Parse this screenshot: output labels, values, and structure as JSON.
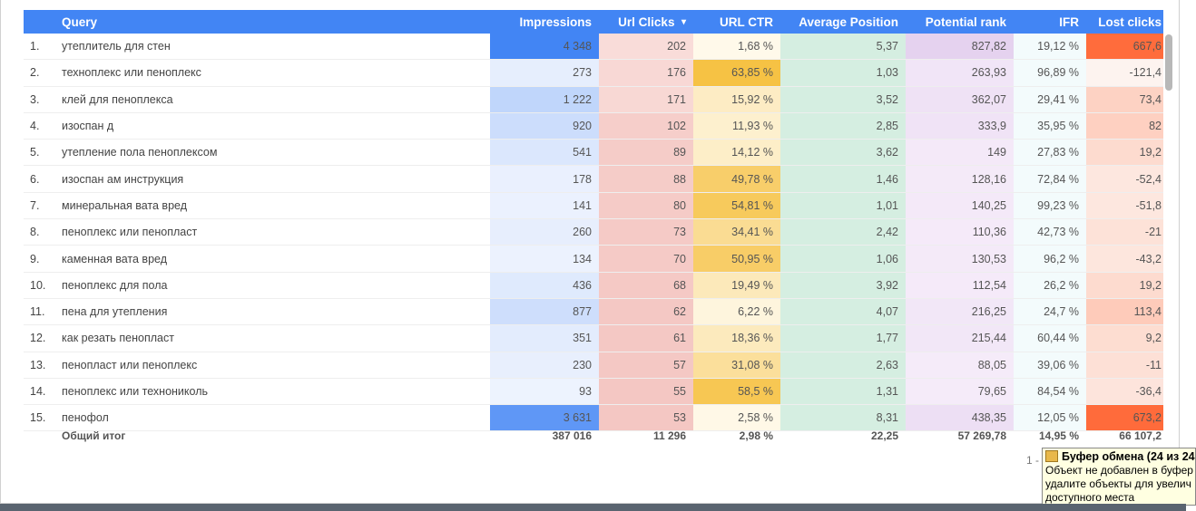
{
  "headers": {
    "query": "Query",
    "impressions": "Impressions",
    "url_clicks": "Url Clicks",
    "sort_icon": "▾",
    "url_ctr": "URL CTR",
    "avg_position": "Average Position",
    "potential_rank": "Potential rank",
    "ifr": "IFR",
    "lost_clicks": "Lost clicks"
  },
  "colors": {
    "header": "#4285f4",
    "impressions": [
      "#f1f5fe",
      "#4285f4"
    ],
    "url_clicks": [
      "#f9dcd9",
      "#f4c7c3"
    ],
    "url_ctr": [
      "#fffaee",
      "#f6c244"
    ],
    "avg_position": [
      "#d5eee1",
      "#d0ebdd"
    ],
    "potential_rank": [
      "#f7eefa",
      "#e5d2ef"
    ],
    "ifr": [
      "#f3fbfc",
      "#eef7fa"
    ],
    "lost_clicks": [
      "#fdf3ef",
      "#ff6a3a"
    ]
  },
  "rows": [
    {
      "n": "1.",
      "query": "утеплитель для стен",
      "impressions": "4 348",
      "imp": 4348,
      "url_clicks": "202",
      "clk": 202,
      "url_ctr": "1,68 %",
      "ctr": 1.68,
      "avg_position": "5,37",
      "potential_rank": "827,82",
      "pr": 827.82,
      "ifr": "19,12 %",
      "lost_clicks": "667,6",
      "lost": 667.6
    },
    {
      "n": "2.",
      "query": "техноплекс или пеноплекс",
      "impressions": "273",
      "imp": 273,
      "url_clicks": "176",
      "clk": 176,
      "url_ctr": "63,85 %",
      "ctr": 63.85,
      "avg_position": "1,03",
      "potential_rank": "263,93",
      "pr": 263.93,
      "ifr": "96,89 %",
      "lost_clicks": "-121,4",
      "lost": -121.4
    },
    {
      "n": "3.",
      "query": "клей для пеноплекса",
      "impressions": "1 222",
      "imp": 1222,
      "url_clicks": "171",
      "clk": 171,
      "url_ctr": "15,92 %",
      "ctr": 15.92,
      "avg_position": "3,52",
      "potential_rank": "362,07",
      "pr": 362.07,
      "ifr": "29,41 %",
      "lost_clicks": "73,4",
      "lost": 73.4
    },
    {
      "n": "4.",
      "query": "изоспан д",
      "impressions": "920",
      "imp": 920,
      "url_clicks": "102",
      "clk": 102,
      "url_ctr": "11,93 %",
      "ctr": 11.93,
      "avg_position": "2,85",
      "potential_rank": "333,9",
      "pr": 333.9,
      "ifr": "35,95 %",
      "lost_clicks": "82",
      "lost": 82
    },
    {
      "n": "5.",
      "query": "утепление пола пеноплексом",
      "impressions": "541",
      "imp": 541,
      "url_clicks": "89",
      "clk": 89,
      "url_ctr": "14,12 %",
      "ctr": 14.12,
      "avg_position": "3,62",
      "potential_rank": "149",
      "pr": 149,
      "ifr": "27,83 %",
      "lost_clicks": "19,2",
      "lost": 19.2
    },
    {
      "n": "6.",
      "query": "изоспан ам инструкция",
      "impressions": "178",
      "imp": 178,
      "url_clicks": "88",
      "clk": 88,
      "url_ctr": "49,78 %",
      "ctr": 49.78,
      "avg_position": "1,46",
      "potential_rank": "128,16",
      "pr": 128.16,
      "ifr": "72,84 %",
      "lost_clicks": "-52,4",
      "lost": -52.4
    },
    {
      "n": "7.",
      "query": "минеральная вата вред",
      "impressions": "141",
      "imp": 141,
      "url_clicks": "80",
      "clk": 80,
      "url_ctr": "54,81 %",
      "ctr": 54.81,
      "avg_position": "1,01",
      "potential_rank": "140,25",
      "pr": 140.25,
      "ifr": "99,23 %",
      "lost_clicks": "-51,8",
      "lost": -51.8
    },
    {
      "n": "8.",
      "query": "пеноплекс или пенопласт",
      "impressions": "260",
      "imp": 260,
      "url_clicks": "73",
      "clk": 73,
      "url_ctr": "34,41 %",
      "ctr": 34.41,
      "avg_position": "2,42",
      "potential_rank": "110,36",
      "pr": 110.36,
      "ifr": "42,73 %",
      "lost_clicks": "-21",
      "lost": -21
    },
    {
      "n": "9.",
      "query": "каменная вата вред",
      "impressions": "134",
      "imp": 134,
      "url_clicks": "70",
      "clk": 70,
      "url_ctr": "50,95 %",
      "ctr": 50.95,
      "avg_position": "1,06",
      "potential_rank": "130,53",
      "pr": 130.53,
      "ifr": "96,2 %",
      "lost_clicks": "-43,2",
      "lost": -43.2
    },
    {
      "n": "10.",
      "query": "пеноплекс для пола",
      "impressions": "436",
      "imp": 436,
      "url_clicks": "68",
      "clk": 68,
      "url_ctr": "19,49 %",
      "ctr": 19.49,
      "avg_position": "3,92",
      "potential_rank": "112,54",
      "pr": 112.54,
      "ifr": "26,2 %",
      "lost_clicks": "19,2",
      "lost": 19.2
    },
    {
      "n": "11.",
      "query": "пена для утепления",
      "impressions": "877",
      "imp": 877,
      "url_clicks": "62",
      "clk": 62,
      "url_ctr": "6,22 %",
      "ctr": 6.22,
      "avg_position": "4,07",
      "potential_rank": "216,25",
      "pr": 216.25,
      "ifr": "24,7 %",
      "lost_clicks": "113,4",
      "lost": 113.4
    },
    {
      "n": "12.",
      "query": "как резать пенопласт",
      "impressions": "351",
      "imp": 351,
      "url_clicks": "61",
      "clk": 61,
      "url_ctr": "18,36 %",
      "ctr": 18.36,
      "avg_position": "1,77",
      "potential_rank": "215,44",
      "pr": 215.44,
      "ifr": "60,44 %",
      "lost_clicks": "9,2",
      "lost": 9.2
    },
    {
      "n": "13.",
      "query": "пенопласт или пеноплекс",
      "impressions": "230",
      "imp": 230,
      "url_clicks": "57",
      "clk": 57,
      "url_ctr": "31,08 %",
      "ctr": 31.08,
      "avg_position": "2,63",
      "potential_rank": "88,05",
      "pr": 88.05,
      "ifr": "39,06 %",
      "lost_clicks": "-11",
      "lost": -11
    },
    {
      "n": "14.",
      "query": "пеноплекс или технониколь",
      "impressions": "93",
      "imp": 93,
      "url_clicks": "55",
      "clk": 55,
      "url_ctr": "58,5 %",
      "ctr": 58.5,
      "avg_position": "1,31",
      "potential_rank": "79,65",
      "pr": 79.65,
      "ifr": "84,54 %",
      "lost_clicks": "-36,4",
      "lost": -36.4
    },
    {
      "n": "15.",
      "query": "пенофол",
      "impressions": "3 631",
      "imp": 3631,
      "url_clicks": "53",
      "clk": 53,
      "url_ctr": "2,58 %",
      "ctr": 2.58,
      "avg_position": "8,31",
      "potential_rank": "438,35",
      "pr": 438.35,
      "ifr": "12,05 %",
      "lost_clicks": "673,2",
      "lost": 673.2
    }
  ],
  "totals": {
    "label": "Общий итог",
    "impressions": "387 016",
    "url_clicks": "11 296",
    "url_ctr": "2,98 %",
    "avg_position": "22,25",
    "potential_rank": "57 269,78",
    "ifr": "14,95 %",
    "lost_clicks": "66 107,2"
  },
  "pager": "1 -",
  "tooltip": {
    "title": "Буфер обмена (24 из 24",
    "line1": "Объект не добавлен в буфер",
    "line2": "удалите объекты для увелич",
    "line3": "доступного места"
  }
}
